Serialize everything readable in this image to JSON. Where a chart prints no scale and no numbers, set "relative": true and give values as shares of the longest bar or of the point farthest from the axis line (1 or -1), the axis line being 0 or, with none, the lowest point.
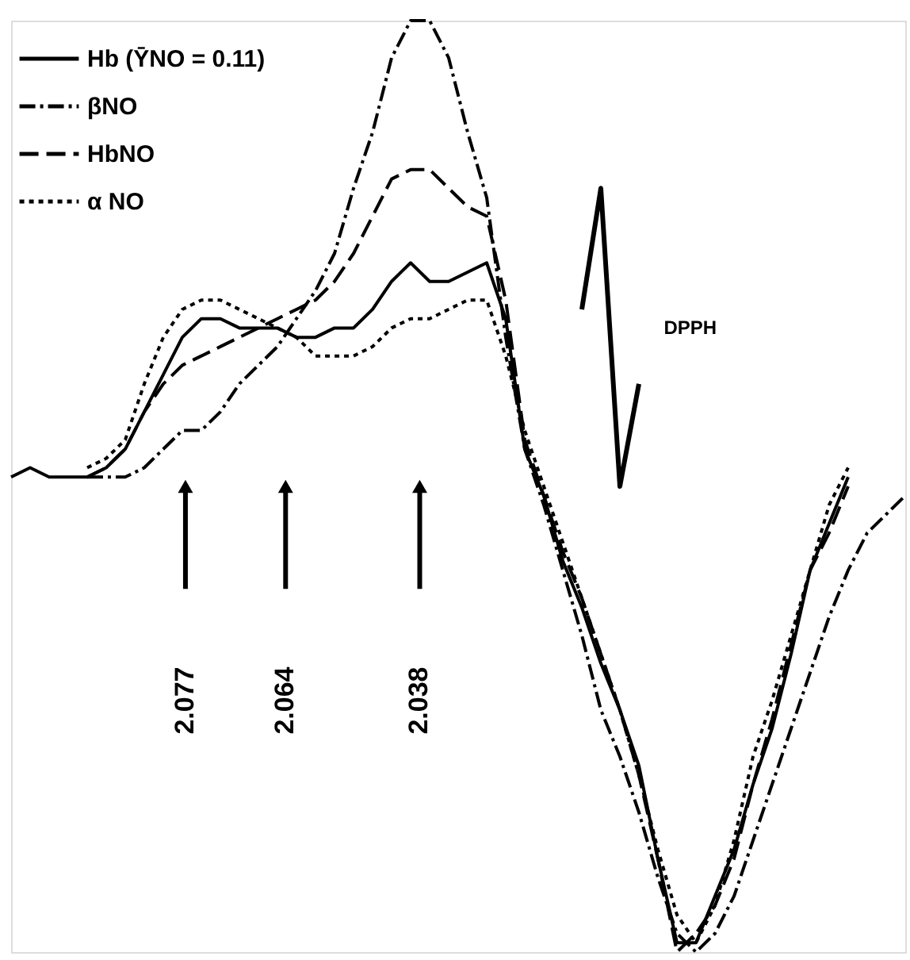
{
  "chart_data": {
    "type": "line",
    "relative": true,
    "legend": "top left",
    "categories": [
      null,
      null,
      null,
      null,
      null,
      null,
      null,
      null,
      null,
      null,
      null,
      null,
      null,
      null,
      null,
      null,
      null,
      null,
      null,
      null,
      null,
      null,
      null,
      null,
      null,
      null,
      null,
      null,
      null,
      null,
      null,
      null,
      null,
      null,
      null,
      null,
      null,
      null,
      null,
      null,
      null,
      null,
      null,
      null,
      null,
      null,
      null,
      null
    ],
    "series": [
      {
        "name": "Hb (ȲNO = 0.11)",
        "color": "#000000",
        "line_style": "solid",
        "values": [
          0.51,
          0.52,
          0.51,
          0.51,
          0.51,
          0.52,
          0.54,
          0.58,
          0.62,
          0.66,
          0.68,
          0.68,
          0.67,
          0.67,
          0.67,
          0.66,
          0.66,
          0.67,
          0.67,
          0.69,
          0.72,
          0.74,
          0.72,
          0.72,
          0.73,
          0.74,
          0.68,
          0.54,
          0.49,
          0.42,
          0.37,
          0.31,
          0.26,
          0.2,
          0.1,
          0.01,
          0.01,
          0.06,
          0.11,
          0.18,
          0.24,
          0.32,
          0.41,
          0.46,
          0.51,
          null,
          null,
          null
        ]
      },
      {
        "name": "βNO",
        "color": "#000000",
        "line_style": "dashdot",
        "values": [
          null,
          null,
          null,
          null,
          0.51,
          0.51,
          0.51,
          0.52,
          0.54,
          0.56,
          0.56,
          0.58,
          0.61,
          0.63,
          0.65,
          0.68,
          0.71,
          0.75,
          0.82,
          0.88,
          0.96,
          1,
          1,
          0.96,
          0.88,
          0.81,
          0.66,
          0.54,
          0.48,
          0.41,
          0.34,
          0.26,
          0.21,
          0.15,
          0.08,
          0.02,
          0,
          0.02,
          0.06,
          0.12,
          0.18,
          0.24,
          0.3,
          0.36,
          0.41,
          0.45,
          0.47,
          0.49
        ]
      },
      {
        "name": "HbNO",
        "color": "#000000",
        "line_style": "dashed",
        "values": [
          null,
          null,
          null,
          null,
          0.51,
          0.52,
          0.54,
          0.58,
          0.61,
          0.63,
          0.64,
          0.65,
          0.66,
          0.67,
          0.68,
          0.69,
          0.7,
          0.72,
          0.75,
          0.79,
          0.83,
          0.84,
          0.84,
          0.82,
          0.8,
          0.79,
          0.7,
          0.55,
          0.49,
          0.43,
          0.38,
          0.32,
          0.26,
          0.19,
          0.1,
          0,
          0.02,
          0.05,
          0.1,
          0.18,
          0.25,
          0.33,
          0.41,
          0.45,
          0.5,
          null,
          null,
          null
        ]
      },
      {
        "name": "α NO",
        "color": "#000000",
        "line_style": "dotted",
        "values": [
          null,
          null,
          null,
          null,
          0.52,
          0.53,
          0.55,
          0.61,
          0.66,
          0.69,
          0.7,
          0.7,
          0.69,
          0.68,
          0.67,
          0.66,
          0.64,
          0.64,
          0.64,
          0.65,
          0.67,
          0.68,
          0.68,
          0.69,
          0.7,
          0.7,
          0.64,
          0.56,
          0.5,
          0.44,
          0.38,
          0.32,
          0.26,
          0.19,
          0.11,
          0.04,
          0.01,
          0.05,
          0.12,
          0.21,
          0.27,
          0.34,
          0.41,
          0.48,
          0.52,
          null,
          null,
          null
        ]
      },
      {
        "color": "#000000",
        "line_style": "solid",
        "values": [
          null,
          null,
          null,
          null,
          null,
          null,
          null,
          null,
          null,
          null,
          null,
          null,
          null,
          null,
          null,
          null,
          null,
          null,
          null,
          null,
          null,
          null,
          null,
          null,
          null,
          null,
          null,
          null,
          null,
          null,
          0.69,
          0.82,
          0.5,
          0.61,
          null,
          null,
          null,
          null,
          null,
          null,
          null,
          null,
          null,
          null,
          null,
          null,
          null,
          null
        ]
      }
    ],
    "annotations": [
      "2.077",
      "2.064",
      "2.038",
      "DPPH"
    ]
  }
}
